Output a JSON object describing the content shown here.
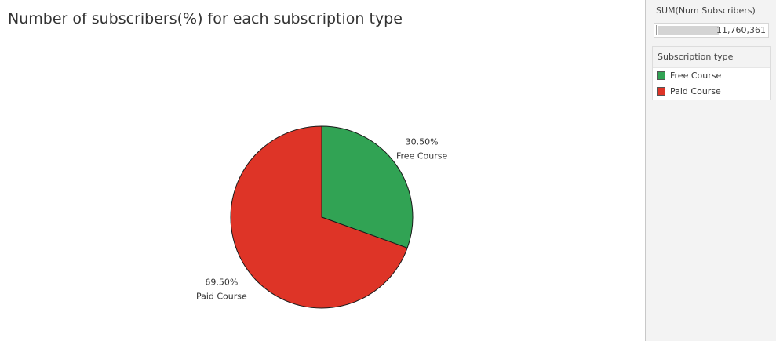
{
  "chart_data": {
    "type": "pie",
    "title": "Number of subscribers(%) for each subscription type",
    "categories": [
      "Free Course",
      "Paid Course"
    ],
    "values": [
      30.5,
      69.5
    ],
    "value_labels": [
      "30.50%",
      "69.50%"
    ],
    "colors": [
      "#31a354",
      "#de3427"
    ],
    "legend_placement": "right"
  },
  "filter": {
    "title": "SUM(Num Subscribers)",
    "value": "11,760,361"
  },
  "legend": {
    "title": "Subscription type",
    "items": [
      {
        "label": "Free Course",
        "color": "#31a354"
      },
      {
        "label": "Paid Course",
        "color": "#de3427"
      }
    ]
  }
}
